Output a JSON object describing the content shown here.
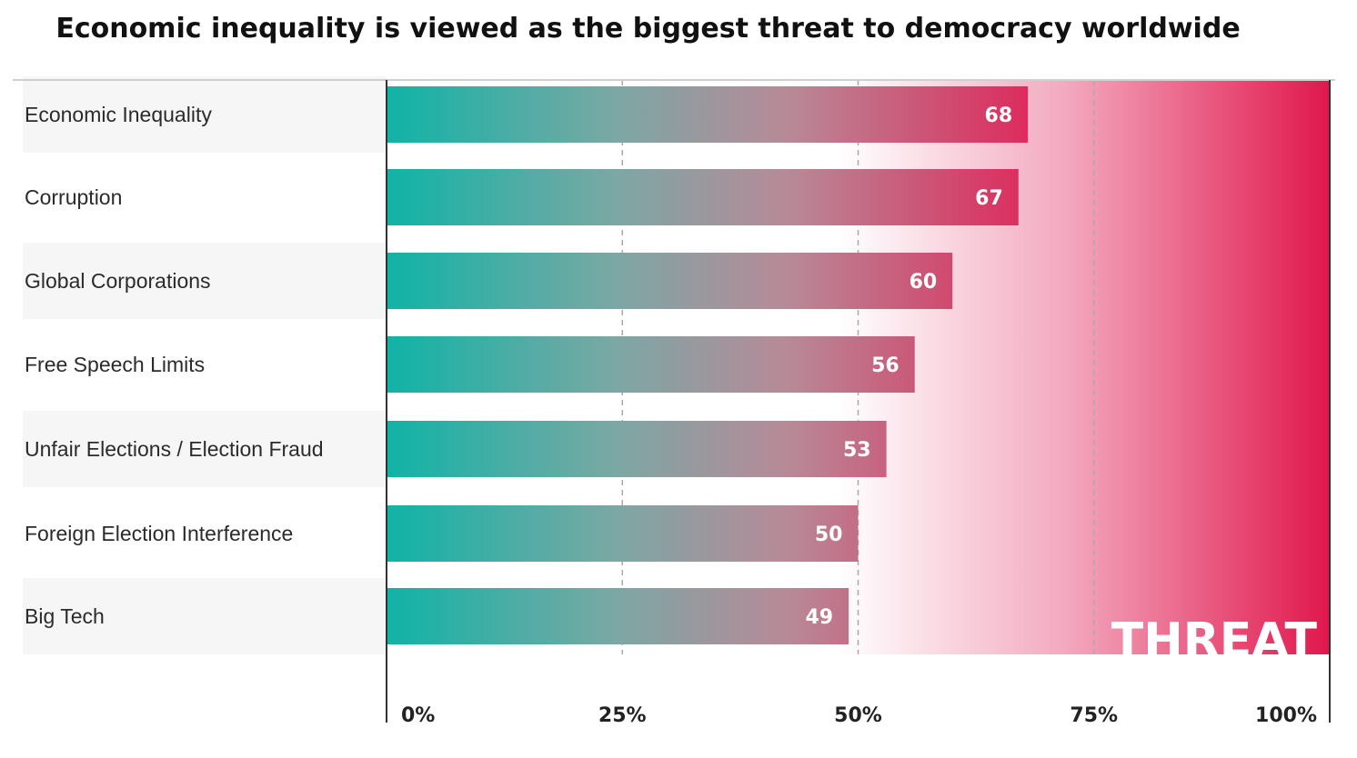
{
  "chart_data": {
    "type": "bar",
    "orientation": "horizontal",
    "title": "Economic inequality is viewed as the biggest threat to democracy worldwide",
    "categories": [
      "Economic Inequality",
      "Corruption",
      "Global Corporations",
      "Free Speech Limits",
      "Unfair Elections / Election Fraud",
      "Foreign Election Interference",
      "Big Tech"
    ],
    "values": [
      68,
      67,
      60,
      56,
      53,
      50,
      49
    ],
    "xlim": [
      0,
      100
    ],
    "xticks": [
      "0%",
      "25%",
      "50%",
      "75%",
      "100%"
    ],
    "grid": "dashed vertical at 25, 50, 75",
    "background_label": "THREAT",
    "colors": {
      "bar_start": "#10b3a6",
      "bar_end": "#dd2a5c",
      "threat_end": "#e0174c",
      "row_band": "#f6f6f6"
    }
  }
}
